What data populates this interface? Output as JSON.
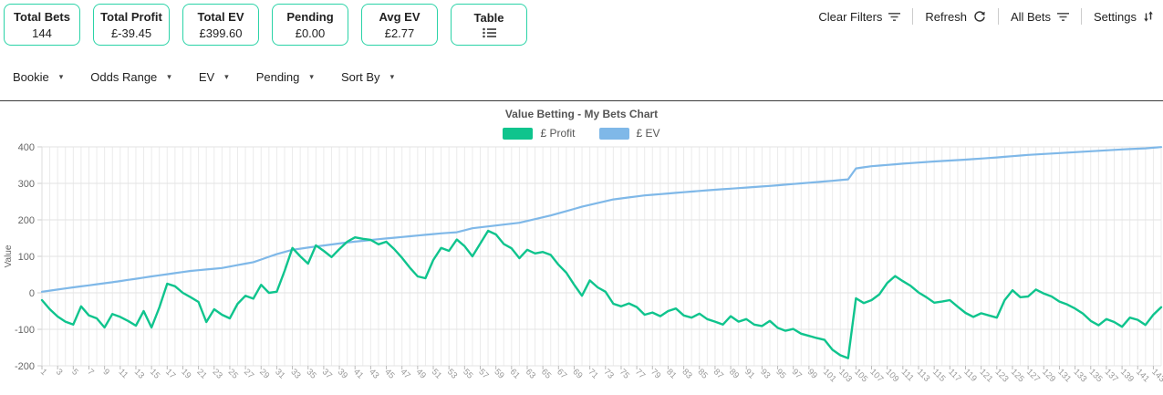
{
  "cards": [
    {
      "label": "Total Bets",
      "value": "144"
    },
    {
      "label": "Total Profit",
      "value": "£-39.45"
    },
    {
      "label": "Total EV",
      "value": "£399.60"
    },
    {
      "label": "Pending",
      "value": "£0.00"
    },
    {
      "label": "Avg EV",
      "value": "£2.77"
    },
    {
      "label": "Table",
      "value": ""
    }
  ],
  "toolbar": {
    "clear_filters_label": "Clear Filters",
    "refresh_label": "Refresh",
    "all_bets_label": "All Bets",
    "settings_label": "Settings"
  },
  "filters": [
    {
      "label": "Bookie"
    },
    {
      "label": "Odds Range"
    },
    {
      "label": "EV"
    },
    {
      "label": "Pending"
    },
    {
      "label": "Sort By"
    }
  ],
  "icons": {
    "caret_down": "▾",
    "filter_icon": "filter-list",
    "refresh_icon": "circular-arrow",
    "sort_icon": "down-up-arrows",
    "table_icon": "bulleted-list"
  },
  "colors": {
    "card_border": "#2bd3a7",
    "profit_line": "#0fc48d",
    "ev_line": "#7fb8e8",
    "grid": "#ebebeb",
    "grid_h": "#e3e3e3",
    "divider": "#3c3c3c",
    "axis_text": "#666666",
    "x_tick_text": "#999999"
  },
  "chart_data": {
    "type": "line",
    "title": "Value Betting - My Bets Chart",
    "xlabel": "",
    "ylabel": "Value",
    "ylim": [
      -200,
      400
    ],
    "yticks": [
      400,
      300,
      200,
      100,
      0,
      -100,
      -200
    ],
    "x_range": [
      1,
      144
    ],
    "x_axis_labels": [
      1,
      3,
      5,
      7,
      9,
      11,
      13,
      15,
      17,
      19,
      21,
      23,
      25,
      27,
      29,
      31,
      33,
      35,
      37,
      39,
      41,
      43,
      45,
      47,
      49,
      51,
      53,
      55,
      57,
      59,
      61,
      63,
      65,
      67,
      69,
      71,
      73,
      75,
      77,
      79,
      81,
      83,
      85,
      87,
      89,
      91,
      93,
      95,
      97,
      99,
      101,
      103,
      105,
      107,
      109,
      111,
      113,
      115,
      117,
      119,
      121,
      123,
      125,
      127,
      129,
      131,
      133,
      135,
      137,
      139,
      141,
      143
    ],
    "grid": "on",
    "legend_position": "top-center",
    "series": [
      {
        "name": "£ Profit",
        "color": "#0fc48d",
        "values": [
          -20,
          -45,
          -65,
          -79,
          -87,
          -37,
          -62,
          -70,
          -95,
          -58,
          -66,
          -77,
          -90,
          -50,
          -95,
          -40,
          25,
          18,
          0,
          -12,
          -25,
          -80,
          -45,
          -60,
          -70,
          -30,
          -8,
          -16,
          22,
          0,
          3,
          60,
          123,
          100,
          80,
          130,
          115,
          98,
          120,
          140,
          152,
          148,
          145,
          133,
          140,
          120,
          96,
          69,
          45,
          40,
          90,
          123,
          115,
          146,
          128,
          100,
          135,
          170,
          160,
          134,
          122,
          95,
          118,
          108,
          112,
          104,
          77,
          55,
          22,
          -8,
          34,
          15,
          3,
          -30,
          -37,
          -29,
          -39,
          -60,
          -54,
          -64,
          -50,
          -43,
          -62,
          -68,
          -57,
          -72,
          -79,
          -87,
          -64,
          -79,
          -72,
          -87,
          -91,
          -77,
          -96,
          -104,
          -99,
          -112,
          -118,
          -124,
          -129,
          -156,
          -171,
          -179,
          -15,
          -28,
          -20,
          -4,
          27,
          46,
          32,
          19,
          1,
          -12,
          -27,
          -24,
          -20,
          -38,
          -55,
          -66,
          -56,
          -62,
          -68,
          -20,
          7,
          -12,
          -10,
          9,
          -2,
          -10,
          -24,
          -32,
          -43,
          -57,
          -77,
          -89,
          -72,
          -80,
          -93,
          -68,
          -74,
          -88,
          -60,
          -39.45
        ]
      },
      {
        "name": "£ EV",
        "color": "#7fb8e8",
        "values": [
          3,
          6,
          9,
          12,
          15,
          17.8,
          20.6,
          23.4,
          26.2,
          29,
          32.2,
          35.4,
          38.6,
          41.8,
          45,
          48,
          51,
          54,
          57,
          60,
          62,
          64,
          66,
          68,
          72,
          76,
          80,
          84,
          91.3,
          98.7,
          106,
          112,
          118,
          121,
          124,
          127,
          129.8,
          132.5,
          135.3,
          138,
          140.3,
          142.5,
          144.8,
          147,
          149,
          151,
          153,
          155,
          157,
          159,
          161,
          163,
          164.5,
          166,
          171.5,
          177,
          179.5,
          182,
          184.5,
          187,
          189.5,
          192,
          197,
          202,
          207,
          212,
          218,
          224,
          230,
          236,
          241,
          246,
          251,
          256,
          258.8,
          261.5,
          264.3,
          267,
          268.8,
          270.5,
          272.3,
          274,
          275.8,
          277.5,
          279.3,
          281,
          282.5,
          284,
          285.5,
          287,
          288.5,
          290,
          291.5,
          293,
          294.8,
          296.5,
          298.3,
          300,
          301.8,
          303.5,
          305.3,
          307,
          309,
          311,
          341,
          344,
          347,
          348.8,
          350.5,
          352.3,
          354,
          355.5,
          357,
          358.5,
          360,
          361.3,
          362.5,
          363.8,
          365,
          366.5,
          368,
          369.5,
          371,
          372.8,
          374.5,
          376.3,
          378,
          379.3,
          380.5,
          381.8,
          383,
          384.3,
          385.5,
          386.8,
          388,
          389.3,
          390.5,
          391.8,
          393,
          394,
          395,
          396,
          397.8,
          399.6
        ]
      }
    ]
  }
}
